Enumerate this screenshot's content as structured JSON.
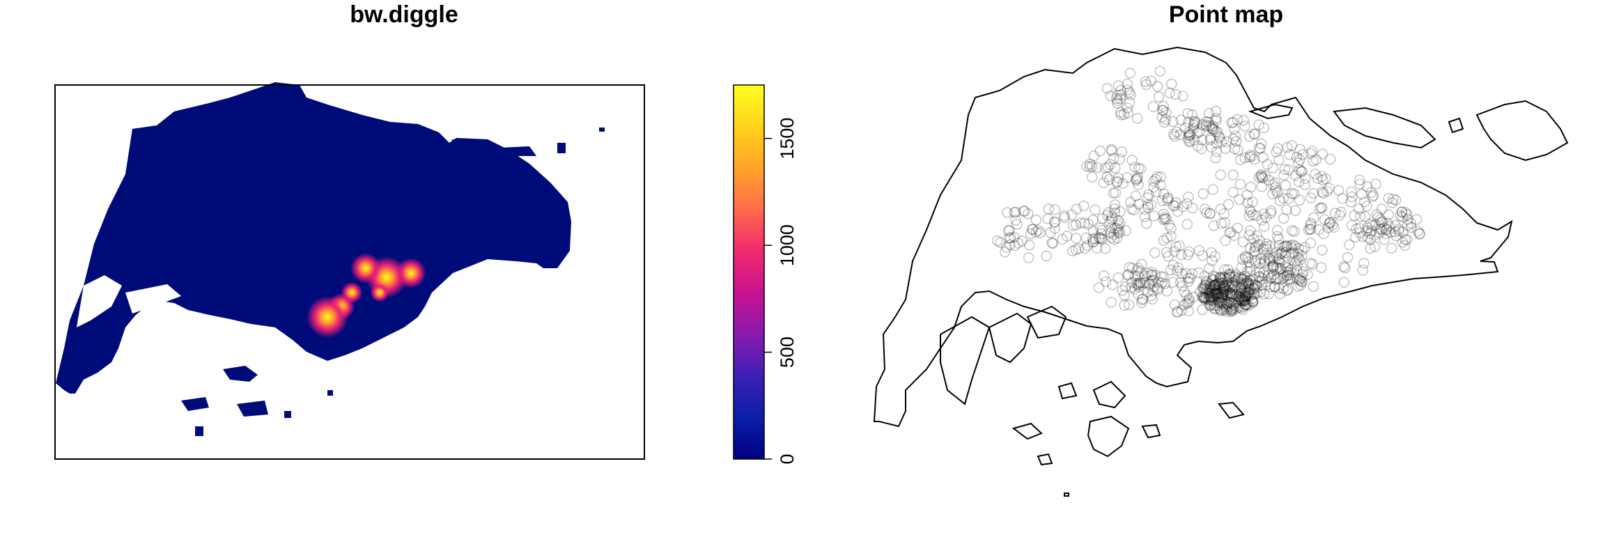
{
  "chart_data": [
    {
      "type": "heatmap",
      "title": "bw.diggle",
      "xlabel": "",
      "ylabel": "",
      "colorbar": {
        "range": [
          0,
          1750
        ],
        "ticks": [
          0,
          500,
          1000,
          1500
        ],
        "tick_labels": [
          "0",
          "500",
          "1000",
          "1500"
        ],
        "colors": [
          "#000080",
          "#0A1FA8",
          "#3C1FB4",
          "#8A1AAE",
          "#C8128F",
          "#F02A6E",
          "#FF6A4C",
          "#FFA42A",
          "#FFD21A",
          "#FFFF20"
        ]
      },
      "background_value_color": "#000B7A",
      "hotspots": [
        {
          "region": "central-south",
          "intensity": 1750
        },
        {
          "region": "central-south",
          "intensity": 1100
        },
        {
          "region": "central-south",
          "intensity": 900
        },
        {
          "region": "central",
          "intensity": 600
        },
        {
          "region": "east-central",
          "intensity": 450
        }
      ],
      "grid": false
    },
    {
      "type": "scatter",
      "title": "Point map",
      "xlabel": "",
      "ylabel": "",
      "marker": "open-circle",
      "marker_color": "#000000",
      "marker_opacity": 0.25,
      "axes": false,
      "grid": false
    }
  ]
}
